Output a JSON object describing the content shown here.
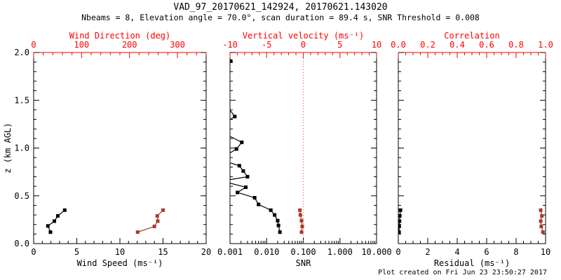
{
  "header": {
    "title": "VAD_97_20170621_142924, 20170621.143020",
    "subtitle": "Nbeams = 8, Elevation angle = 70.0°, scan duration = 89.4 s, SNR Threshold = 0.008"
  },
  "footer": {
    "created": "Plot created on Fri Jun 23 23:50:27 2017"
  },
  "colors": {
    "background": "#ffffff",
    "frame_black": "#000000",
    "axis_red": "#ff0000",
    "data_black": "#000000",
    "data_red": "#a93a2d",
    "reference_red": "#d4442a"
  },
  "y_axis": {
    "label": "z (km AGL)",
    "range": [
      0,
      2
    ],
    "ticks": [
      "0.0",
      "0.5",
      "1.0",
      "1.5",
      "2.0"
    ],
    "minor_step": 0.1
  },
  "chart_data": [
    {
      "id": "wind",
      "type": "line",
      "x_bottom": {
        "label": "Wind Speed (ms⁻¹)",
        "range": [
          0,
          20
        ],
        "ticks": [
          "0",
          "5",
          "10",
          "15",
          "20"
        ],
        "minor_step": 1
      },
      "x_top": {
        "label": "Wind Direction (deg)",
        "range": [
          0,
          360
        ],
        "ticks": [
          "0",
          "100",
          "200",
          "300"
        ],
        "minor_step": 20
      },
      "show_y_labels": true,
      "series": [
        {
          "name": "wind-speed",
          "axis": "bottom",
          "color": "data_black",
          "points": [
            [
              1.95,
              0.12
            ],
            [
              1.65,
              0.185
            ],
            [
              2.4,
              0.235
            ],
            [
              2.8,
              0.29
            ],
            [
              3.6,
              0.35
            ]
          ]
        },
        {
          "name": "wind-direction",
          "axis": "top",
          "color": "data_red",
          "points": [
            [
              217,
              0.12
            ],
            [
              252,
              0.18
            ],
            [
              259,
              0.235
            ],
            [
              258,
              0.29
            ],
            [
              270,
              0.35
            ]
          ]
        }
      ]
    },
    {
      "id": "snr",
      "type": "line",
      "x_bottom": {
        "label": "SNR",
        "scale": "log",
        "range": [
          0.001,
          10
        ],
        "ticks": [
          "0.001",
          "0.010",
          "0.100",
          "1.000",
          "10.000"
        ]
      },
      "x_top": {
        "label": "Vertical velocity (ms⁻¹)",
        "range": [
          -10,
          10
        ],
        "ticks": [
          "-10",
          "-5",
          "0",
          "5",
          "10"
        ],
        "minor_step": 1
      },
      "show_y_labels": false,
      "reference_line": {
        "axis": "top",
        "value": 0
      },
      "series": [
        {
          "name": "snr-profile",
          "axis": "bottom",
          "color": "data_black",
          "points": [
            [
              0.00105,
              1.91
            ],
            [
              0.0004,
              1.6
            ],
            [
              0.00135,
              1.33
            ],
            [
              0.0004,
              1.2
            ],
            [
              0.0021,
              1.06
            ],
            [
              0.0015,
              0.99
            ],
            [
              0.0005,
              0.88
            ],
            [
              0.0018,
              0.815
            ],
            [
              0.0023,
              0.76
            ],
            [
              0.003,
              0.7
            ],
            [
              0.0006,
              0.655
            ],
            [
              0.0027,
              0.59
            ],
            [
              0.0016,
              0.535
            ],
            [
              0.0047,
              0.48
            ],
            [
              0.006,
              0.41
            ],
            [
              0.013,
              0.35
            ],
            [
              0.0165,
              0.3
            ],
            [
              0.02,
              0.24
            ],
            [
              0.021,
              0.19
            ],
            [
              0.023,
              0.12
            ]
          ]
        },
        {
          "name": "vertical-velocity",
          "axis": "top",
          "color": "data_red",
          "points": [
            [
              -0.46,
              0.35
            ],
            [
              -0.4,
              0.3
            ],
            [
              -0.24,
              0.24
            ],
            [
              -0.14,
              0.18
            ],
            [
              -0.24,
              0.12
            ]
          ]
        }
      ]
    },
    {
      "id": "residual",
      "type": "line",
      "x_bottom": {
        "label": "Residual (ms⁻¹)",
        "range": [
          0,
          10
        ],
        "ticks": [
          "0",
          "2",
          "4",
          "6",
          "8",
          "10"
        ],
        "minor_step": 0.5
      },
      "x_top": {
        "label": "Correlation",
        "range": [
          0,
          1
        ],
        "ticks": [
          "0.0",
          "0.2",
          "0.4",
          "0.6",
          "0.8",
          "1.0"
        ],
        "minor_step": 0.05
      },
      "show_y_labels": false,
      "series": [
        {
          "name": "residual",
          "axis": "bottom",
          "color": "data_black",
          "points": [
            [
              0.15,
              0.35
            ],
            [
              0.1,
              0.29
            ],
            [
              0.08,
              0.235
            ],
            [
              0.06,
              0.18
            ],
            [
              0.05,
              0.12
            ]
          ]
        },
        {
          "name": "correlation",
          "axis": "top",
          "color": "data_red",
          "points": [
            [
              0.967,
              0.35
            ],
            [
              0.975,
              0.29
            ],
            [
              0.967,
              0.235
            ],
            [
              0.971,
              0.18
            ],
            [
              0.982,
              0.12
            ]
          ]
        }
      ]
    }
  ]
}
